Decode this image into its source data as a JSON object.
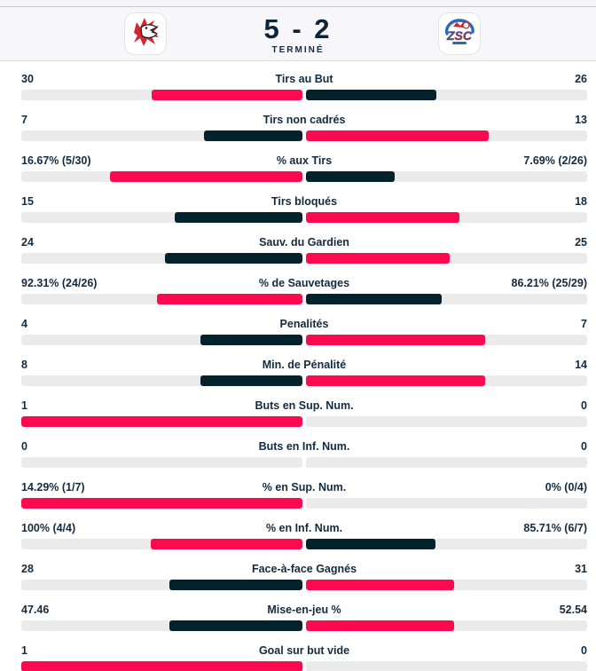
{
  "header": {
    "score": "5 - 2",
    "status": "TERMINÉ",
    "home_team": {
      "logo": "lausanne-lion"
    },
    "away_team": {
      "logo": "zsc-lions",
      "logo_text": "ZSC"
    }
  },
  "colors": {
    "leader_bar": "#fb0a50",
    "trailer_bar": "#04222c",
    "track": "#ebebec",
    "text": "#142b3f",
    "header_bg": "#f7f7f9"
  },
  "stats": {
    "rows": [
      {
        "label": "Tirs au But",
        "left": "30",
        "right": "26",
        "leftVal": 30,
        "rightVal": 26
      },
      {
        "label": "Tirs non cadrés",
        "left": "7",
        "right": "13",
        "leftVal": 7,
        "rightVal": 13
      },
      {
        "label": "% aux Tirs",
        "left": "16.67% (5/30)",
        "right": "7.69% (2/26)",
        "leftVal": 16.67,
        "rightVal": 7.69
      },
      {
        "label": "Tirs bloqués",
        "left": "15",
        "right": "18",
        "leftVal": 15,
        "rightVal": 18
      },
      {
        "label": "Sauv. du Gardien",
        "left": "24",
        "right": "25",
        "leftVal": 24,
        "rightVal": 25
      },
      {
        "label": "% de Sauvetages",
        "left": "92.31% (24/26)",
        "right": "86.21% (25/29)",
        "leftVal": 92.31,
        "rightVal": 86.21
      },
      {
        "label": "Penalités",
        "left": "4",
        "right": "7",
        "leftVal": 4,
        "rightVal": 7
      },
      {
        "label": "Min. de Pénalité",
        "left": "8",
        "right": "14",
        "leftVal": 8,
        "rightVal": 14
      },
      {
        "label": "Buts en Sup. Num.",
        "left": "1",
        "right": "0",
        "leftVal": 1,
        "rightVal": 0
      },
      {
        "label": "Buts en Inf. Num.",
        "left": "0",
        "right": "0",
        "leftVal": 0,
        "rightVal": 0
      },
      {
        "label": "% en Sup. Num.",
        "left": "14.29% (1/7)",
        "right": "0% (0/4)",
        "leftVal": 14.29,
        "rightVal": 0
      },
      {
        "label": "% en Inf. Num.",
        "left": "100% (4/4)",
        "right": "85.71% (6/7)",
        "leftVal": 100,
        "rightVal": 85.71
      },
      {
        "label": "Face-à-face Gagnés",
        "left": "28",
        "right": "31",
        "leftVal": 28,
        "rightVal": 31
      },
      {
        "label": "Mise-en-jeu %",
        "left": "47.46",
        "right": "52.54",
        "leftVal": 47.46,
        "rightVal": 52.54
      },
      {
        "label": "Goal sur but vide",
        "left": "1",
        "right": "0",
        "leftVal": 1,
        "rightVal": 0
      }
    ]
  }
}
